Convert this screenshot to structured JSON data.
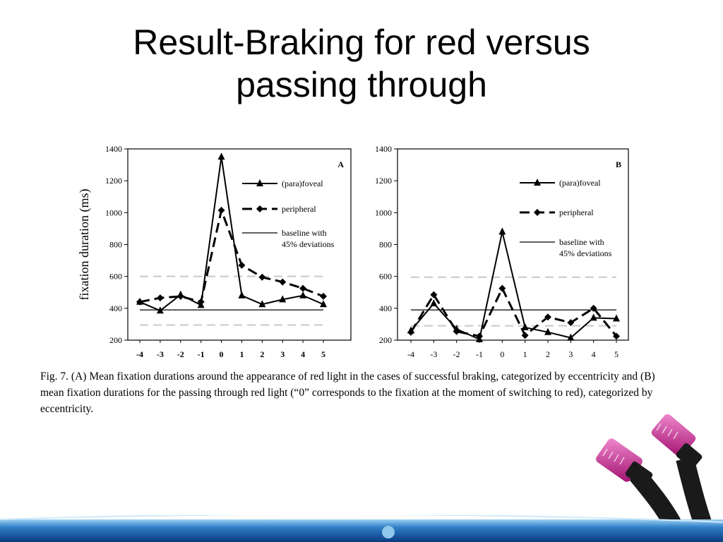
{
  "slide": {
    "title_line1": "Result-Braking for red versus",
    "title_line2": "passing through"
  },
  "figure": {
    "caption": "Fig. 7. (A) Mean fixation durations around the appearance of red light in the cases of successful braking, categorized by eccentricity and (B) mean fixation durations for the passing through red light (“0” corresponds to the fixation at the moment of switching to red), categorized by eccentricity."
  },
  "decor": {
    "footer_dark": "#0d3f86",
    "footer_light": "#8fc6ec",
    "cable_pink": "#c8198c",
    "cable_black": "#1a1a1a",
    "icons": [
      "network-cable-icon"
    ]
  },
  "chart_data": [
    {
      "type": "line",
      "panel_label": "A",
      "ylabel": "fixation duration (ms)",
      "ylim": [
        200,
        1400
      ],
      "yticks": [
        "1400",
        "1200",
        "1000",
        "800",
        "600",
        "400",
        "200"
      ],
      "x": [
        "-4",
        "-3",
        "-2",
        "-1",
        "0",
        "1",
        "2",
        "3",
        "4",
        "5"
      ],
      "series": [
        {
          "name": "(para)foveal",
          "values": [
            440,
            385,
            485,
            420,
            1350,
            480,
            425,
            455,
            480,
            425
          ]
        },
        {
          "name": "peripheral",
          "values": [
            440,
            465,
            475,
            440,
            1015,
            670,
            595,
            565,
            525,
            475
          ]
        }
      ],
      "baseline": {
        "name": "baseline with",
        "name_line2": "45% deviations",
        "value": 390,
        "upper": 600,
        "lower": 295
      },
      "legend_position": "top-right",
      "grid": false
    },
    {
      "type": "line",
      "panel_label": "B",
      "ylabel": "",
      "ylim": [
        200,
        1400
      ],
      "yticks": [
        "1400",
        "1200",
        "1000",
        "800",
        "600",
        "400",
        "200"
      ],
      "x": [
        "-4",
        "-3",
        "-2",
        "-1",
        "0",
        "1",
        "2",
        "3",
        "4",
        "5"
      ],
      "series": [
        {
          "name": "(para)foveal",
          "values": [
            260,
            430,
            270,
            205,
            880,
            280,
            250,
            215,
            340,
            335
          ]
        },
        {
          "name": "peripheral",
          "values": [
            250,
            485,
            255,
            225,
            525,
            230,
            345,
            310,
            400,
            225
          ]
        }
      ],
      "baseline": {
        "name": "baseline with",
        "name_line2": "45% deviations",
        "value": 390,
        "upper": 595,
        "lower": 290
      },
      "legend_position": "top-right",
      "grid": false
    }
  ]
}
